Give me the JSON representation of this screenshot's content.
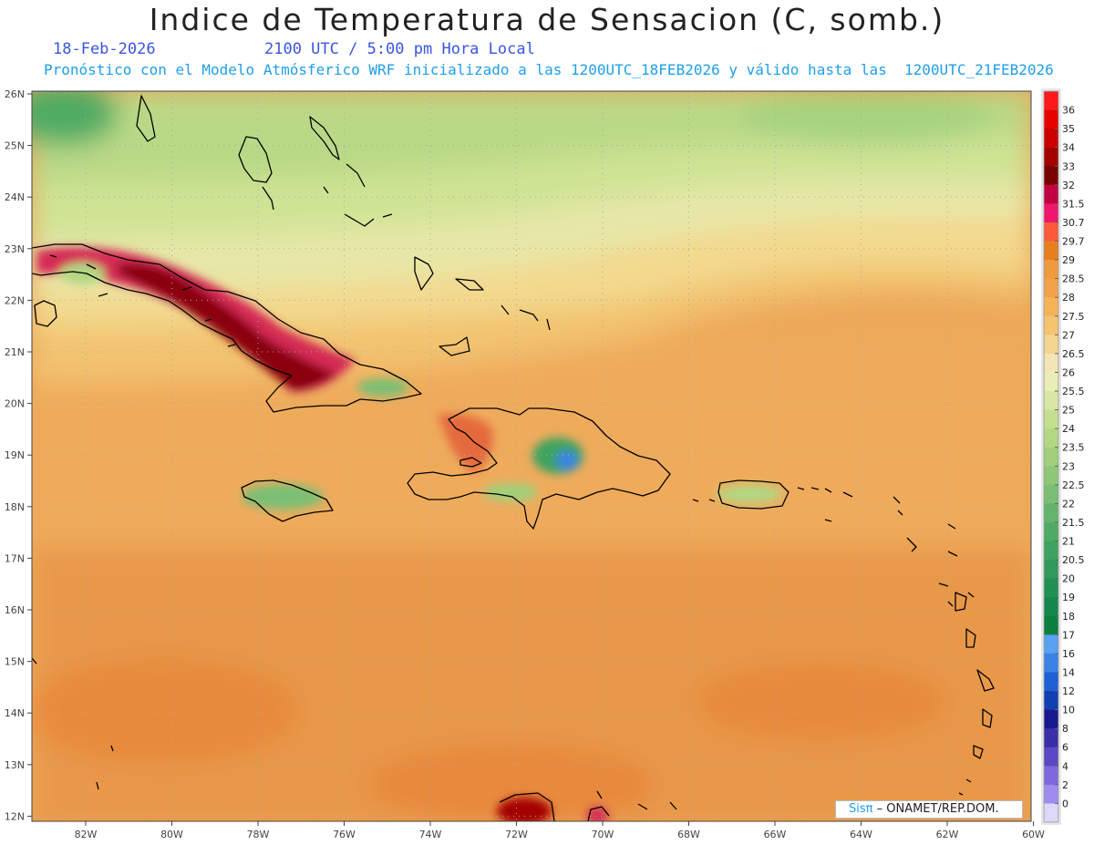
{
  "header": {
    "title": "Indice de Temperatura de Sensacion (C, somb.)",
    "date": "18-Feb-2026",
    "time": "2100 UTC / 5:00 pm Hora Local",
    "model_info": "Pronóstico con el Modelo Atmósferico WRF inicializado a las 1200UTC_18FEB2026 y válido hasta las  1200UTC_21FEB2026"
  },
  "map": {
    "lat_labels": [
      "26N",
      "25N",
      "24N",
      "23N",
      "22N",
      "21N",
      "20N",
      "19N",
      "18N",
      "17N",
      "16N",
      "15N",
      "14N",
      "13N",
      "12N"
    ],
    "lon_labels": [
      "82W",
      "80W",
      "78W",
      "76W",
      "74W",
      "72W",
      "70W",
      "68W",
      "66W",
      "64W",
      "62W",
      "60W"
    ],
    "islands": [
      "cuba",
      "hispaniola",
      "jamaica",
      "puerto-rico",
      "andros",
      "abaco",
      "eleuthera",
      "isla-juventud",
      "gonave",
      "lesser-antilles"
    ]
  },
  "legend": {
    "labels": [
      "36",
      "35",
      "34",
      "33",
      "32",
      "31.5",
      "30.7",
      "29.7",
      "29",
      "28.5",
      "28",
      "27.5",
      "27",
      "26.5",
      "26",
      "25.5",
      "25",
      "24",
      "23.5",
      "23",
      "22.5",
      "22",
      "21.5",
      "21",
      "20.5",
      "20",
      "19",
      "18",
      "17",
      "16",
      "14",
      "12",
      "10",
      "8",
      "6",
      "4",
      "2",
      "0"
    ],
    "colors": [
      "#fe1a1a",
      "#e60000",
      "#cc0000",
      "#a30000",
      "#7a0000",
      "#c00040",
      "#f0166e",
      "#fc5a3a",
      "#e87f1e",
      "#ef9a3e",
      "#f2a24b",
      "#f4b357",
      "#f4c46f",
      "#f4d690",
      "#f3e5b6",
      "#eaedb6",
      "#d8e8a3",
      "#c4df8e",
      "#b2d883",
      "#a0d07a",
      "#8ec877",
      "#7abf74",
      "#63b56b",
      "#4fab64",
      "#3ea35f",
      "#31995a",
      "#209052",
      "#14884a",
      "#0b7f40",
      "#5aa0f0",
      "#3b82e6",
      "#1f5fd6",
      "#0f3fb0",
      "#1a1a8f",
      "#3a2fa8",
      "#5a48c4",
      "#7c68dc",
      "#9e8cef"
    ]
  },
  "credit": {
    "logo": "Sisπ",
    "text": "– ONAMET/REP.DOM."
  }
}
